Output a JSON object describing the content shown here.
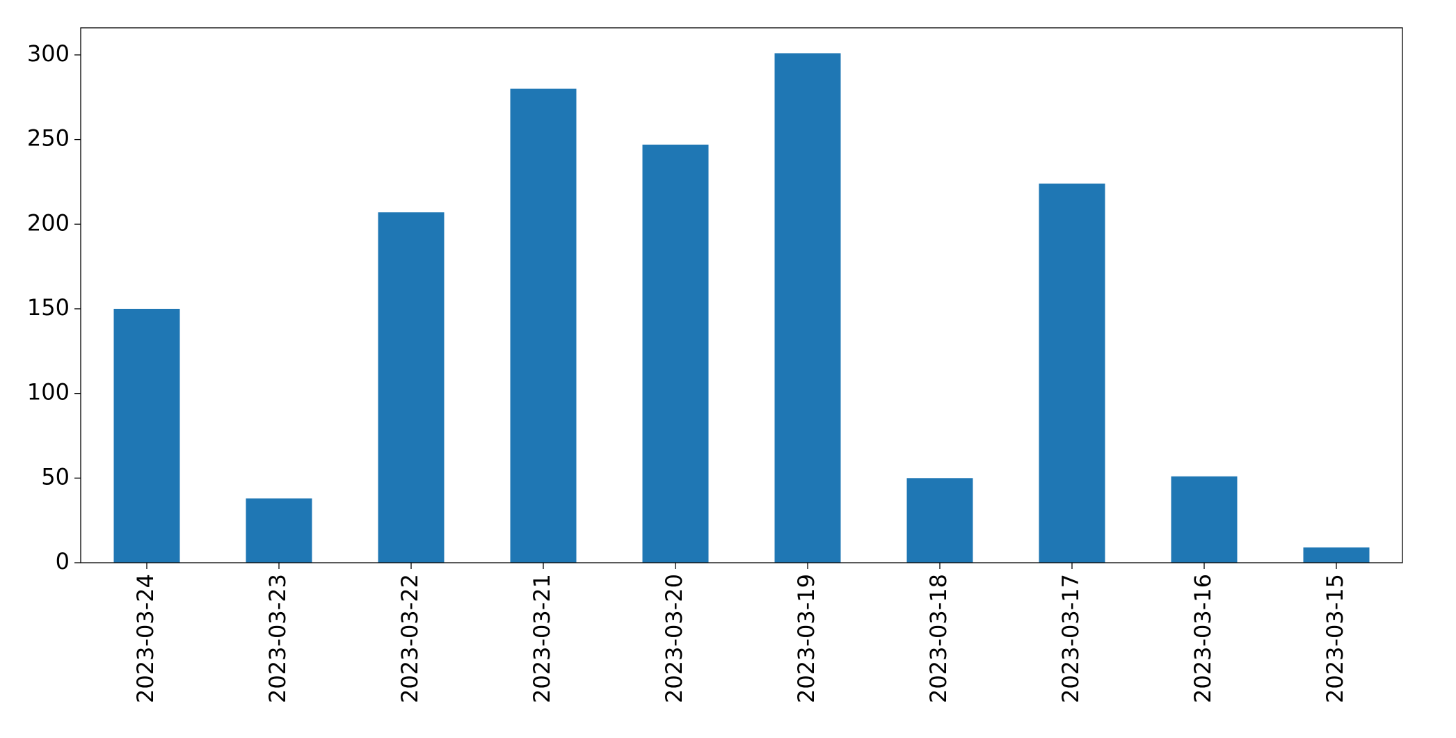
{
  "chart_data": {
    "type": "bar",
    "categories": [
      "2023-03-24",
      "2023-03-23",
      "2023-03-22",
      "2023-03-21",
      "2023-03-20",
      "2023-03-19",
      "2023-03-18",
      "2023-03-17",
      "2023-03-16",
      "2023-03-15"
    ],
    "values": [
      150,
      38,
      207,
      280,
      247,
      301,
      50,
      224,
      51,
      9
    ],
    "color": "#1f77b4",
    "ylim": [
      0,
      316
    ],
    "yticks": [
      0,
      50,
      100,
      150,
      200,
      250,
      300
    ],
    "grid": false
  }
}
